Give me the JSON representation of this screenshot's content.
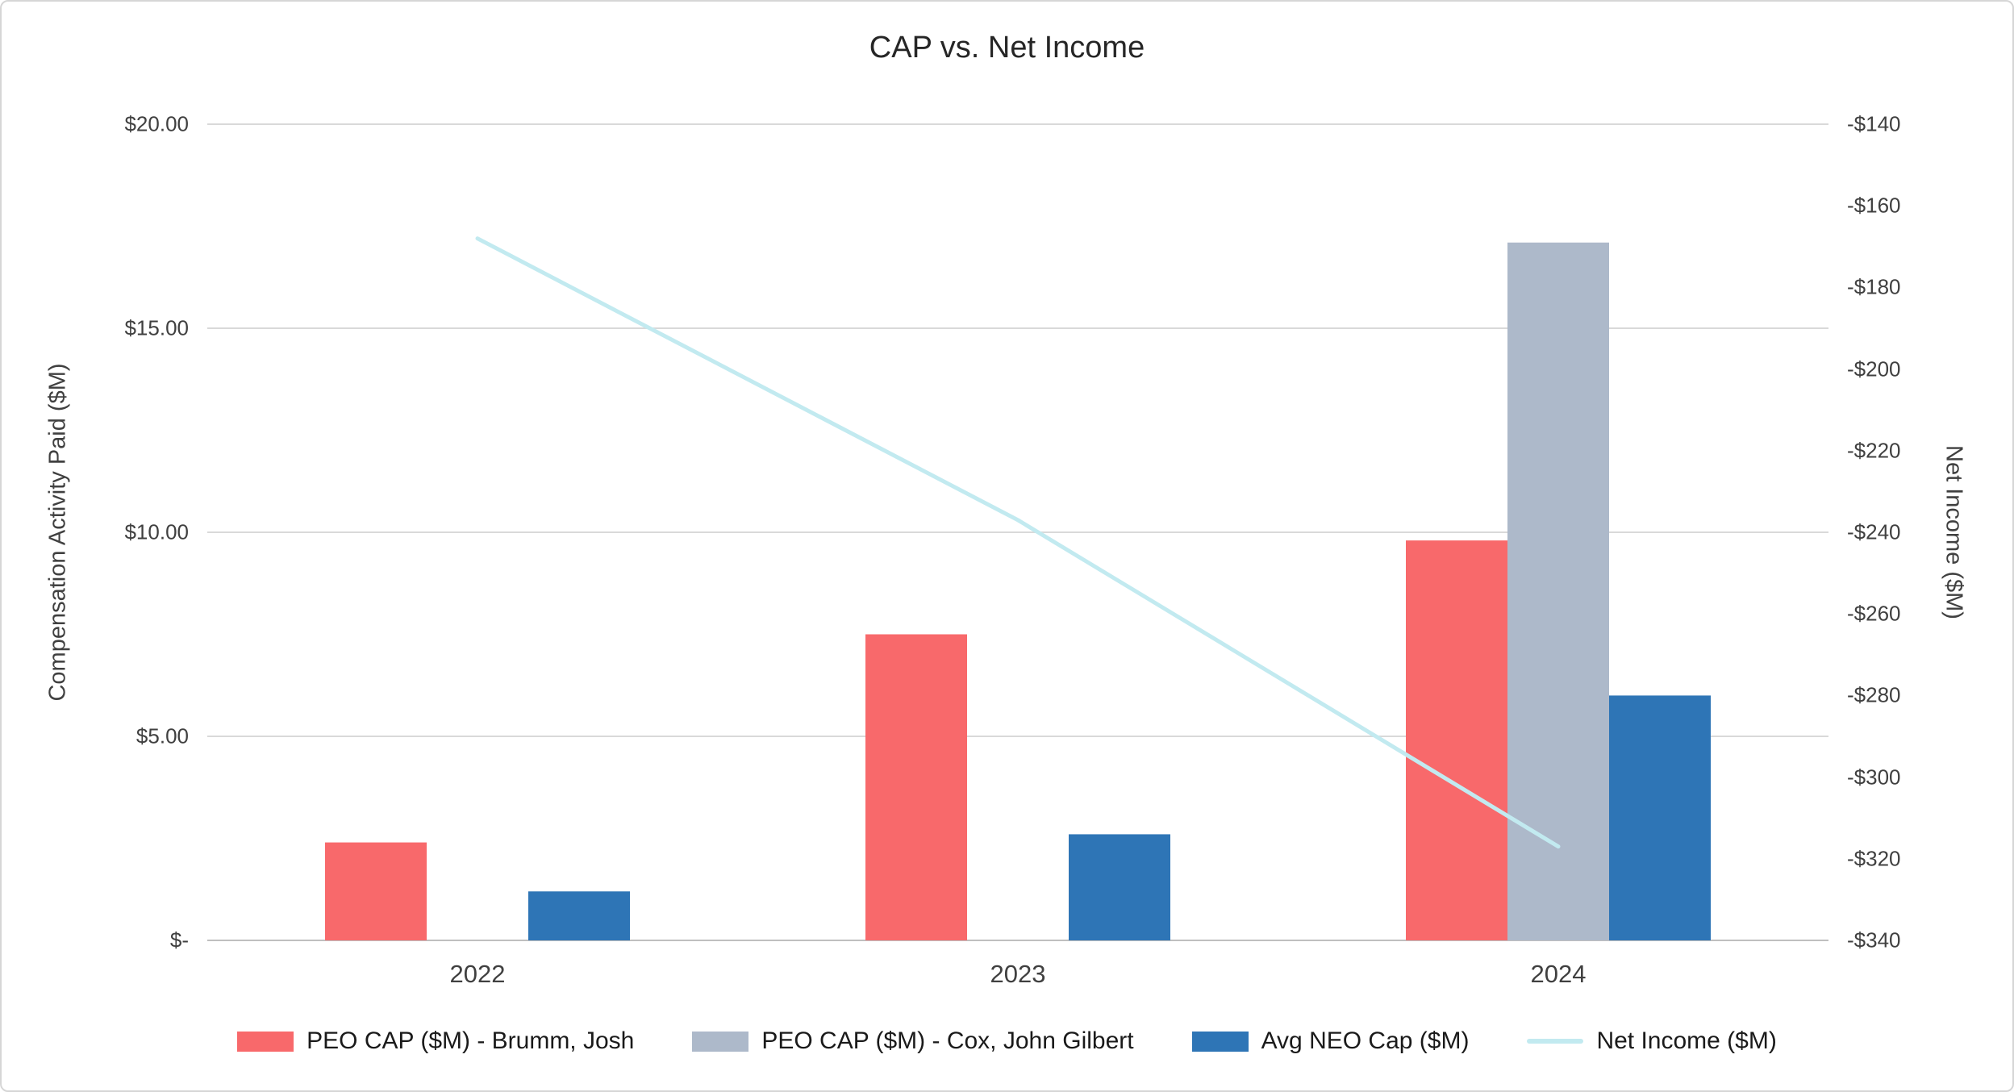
{
  "chart_data": {
    "type": "bar",
    "title": "CAP vs. Net Income",
    "categories": [
      "2022",
      "2023",
      "2024"
    ],
    "series": [
      {
        "name": "PEO CAP ($M) - Brumm, Josh",
        "type": "bar",
        "axis": "left",
        "color": "#F8696B",
        "values": [
          2.4,
          7.5,
          9.8
        ]
      },
      {
        "name": "PEO CAP ($M) - Cox, John Gilbert",
        "type": "bar",
        "axis": "left",
        "color": "#ADB9CA",
        "values": [
          null,
          null,
          17.1
        ]
      },
      {
        "name": "Avg NEO Cap ($M)",
        "type": "bar",
        "axis": "left",
        "color": "#2E75B6",
        "values": [
          1.2,
          2.6,
          6.0
        ]
      },
      {
        "name": "Net Income ($M)",
        "type": "line",
        "axis": "right",
        "color": "#C2EAF0",
        "values": [
          -168,
          -237,
          -317
        ]
      }
    ],
    "ylabel_left": "Compensation Activity Paid ($M)",
    "ylabel_right": "Net Income ($M)",
    "ylim_left": [
      0,
      20
    ],
    "ylim_right": [
      -340,
      -140
    ],
    "grid": true,
    "legend_position": "bottom"
  },
  "left_axis": {
    "title": "Compensation Activity Paid ($M)",
    "ticks": [
      "$20.00",
      "$15.00",
      "$10.00",
      "$5.00",
      "$-"
    ]
  },
  "right_axis": {
    "title": "Net Income ($M)",
    "ticks": [
      "-$140",
      "-$160",
      "-$180",
      "-$200",
      "-$220",
      "-$240",
      "-$260",
      "-$280",
      "-$300",
      "-$320",
      "-$340"
    ]
  },
  "x_axis": {
    "labels": [
      "2022",
      "2023",
      "2024"
    ]
  },
  "colors": {
    "gridline": "#D9D9D9",
    "axis_line": "#BFBFBF",
    "background": "#FFFFFF"
  }
}
